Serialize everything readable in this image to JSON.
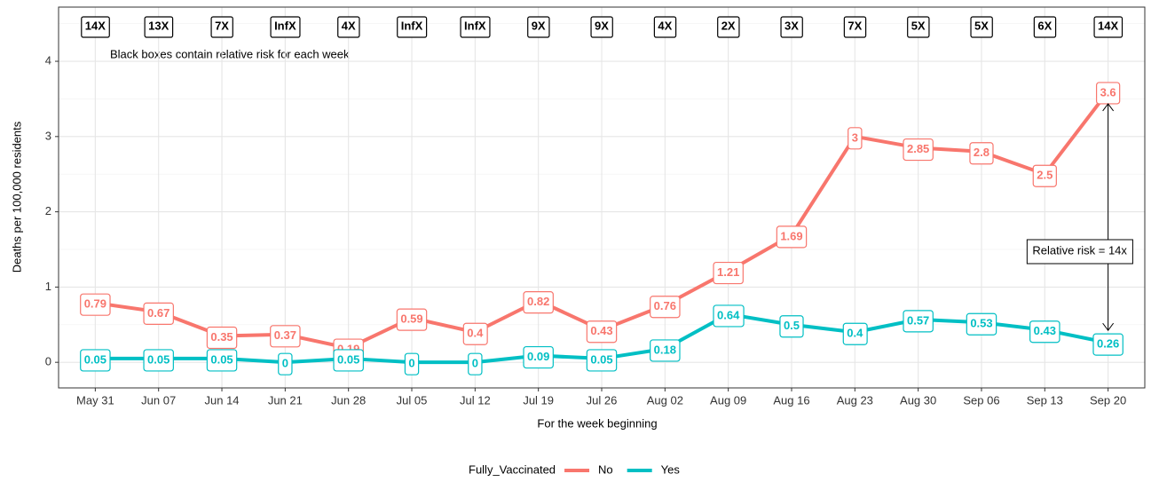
{
  "chart_data": {
    "type": "line",
    "annotation": "Black boxes contain relative risk for each week",
    "relative_risk_labels": [
      "14X",
      "13X",
      "7X",
      "InfX",
      "4X",
      "InfX",
      "InfX",
      "9X",
      "9X",
      "4X",
      "2X",
      "3X",
      "7X",
      "5X",
      "5X",
      "6X",
      "14X"
    ],
    "arrow_label": "Relative risk = 14x",
    "x_label": "For the week beginning",
    "y_label": "Deaths per 100,000 residents",
    "categories": [
      "May 31",
      "Jun 07",
      "Jun 14",
      "Jun 21",
      "Jun 28",
      "Jul 05",
      "Jul 12",
      "Jul 19",
      "Jul 26",
      "Aug 02",
      "Aug 09",
      "Aug 16",
      "Aug 23",
      "Aug 30",
      "Sep 06",
      "Sep 13",
      "Sep 20"
    ],
    "legend_title": "Fully_Vaccinated",
    "series": [
      {
        "name": "No",
        "color": "#F8766D",
        "values": [
          0.79,
          0.67,
          0.35,
          0.37,
          0.19,
          0.59,
          0.4,
          0.82,
          0.43,
          0.76,
          1.21,
          1.69,
          3,
          2.85,
          2.8,
          2.5,
          3.6
        ]
      },
      {
        "name": "Yes",
        "color": "#00BFC4",
        "values": [
          0.05,
          0.05,
          0.05,
          0,
          0.05,
          0,
          0,
          0.09,
          0.05,
          0.18,
          0.64,
          0.5,
          0.4,
          0.57,
          0.53,
          0.43,
          0.26
        ]
      }
    ],
    "ylim": [
      -0.34,
      4.72
    ],
    "yticks": [
      0,
      1,
      2,
      3,
      4
    ],
    "y_minor_ticks": [
      0.5,
      1.5,
      2.5,
      3.5,
      4.5
    ],
    "grid": true,
    "legend_position": "bottom"
  }
}
